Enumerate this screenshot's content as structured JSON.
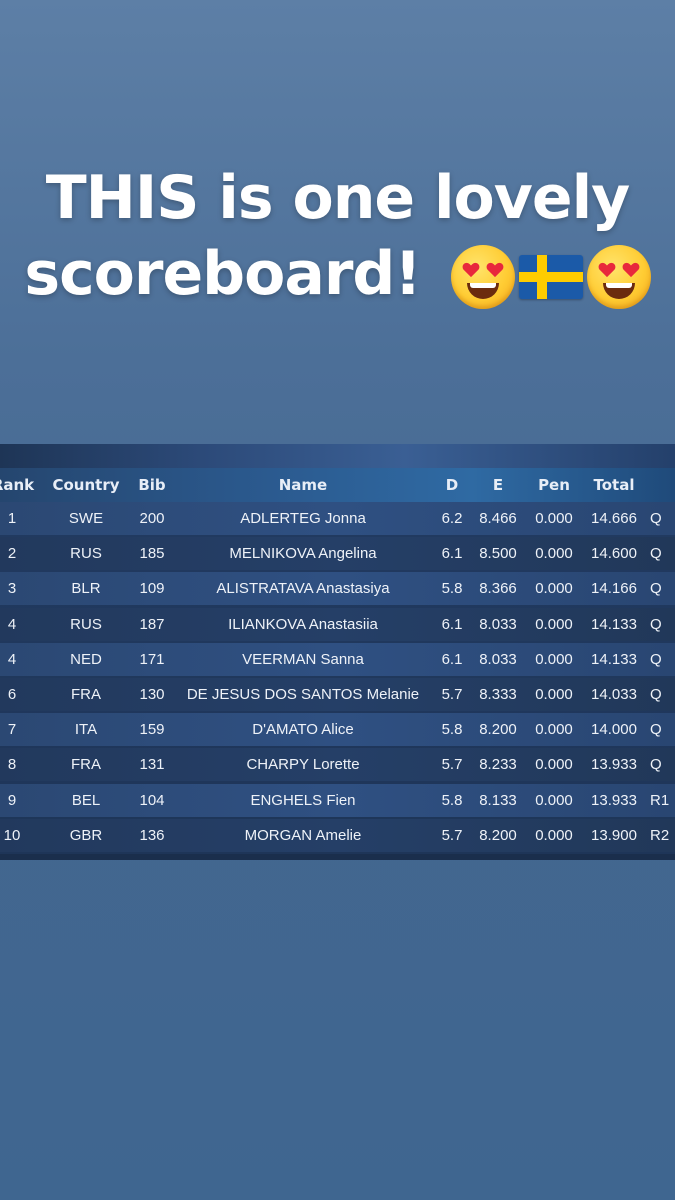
{
  "caption": {
    "line1": "THIS is one lovely",
    "line2": "scoreboard!",
    "emojis": [
      "heart-eyes-emoji",
      "swedish-flag-emoji",
      "heart-eyes-emoji"
    ]
  },
  "scoreboard": {
    "headers": {
      "rank": "Rank",
      "country": "Country",
      "bib": "Bib",
      "name": "Name",
      "d": "D",
      "e": "E",
      "pen": "Pen",
      "total": "Total"
    },
    "rows": [
      {
        "rank": "1",
        "country": "SWE",
        "bib": "200",
        "name": "ADLERTEG Jonna",
        "d": "6.2",
        "e": "8.466",
        "pen": "0.000",
        "total": "14.666",
        "q": "Q"
      },
      {
        "rank": "2",
        "country": "RUS",
        "bib": "185",
        "name": "MELNIKOVA Angelina",
        "d": "6.1",
        "e": "8.500",
        "pen": "0.000",
        "total": "14.600",
        "q": "Q"
      },
      {
        "rank": "3",
        "country": "BLR",
        "bib": "109",
        "name": "ALISTRATAVA Anastasiya",
        "d": "5.8",
        "e": "8.366",
        "pen": "0.000",
        "total": "14.166",
        "q": "Q"
      },
      {
        "rank": "4",
        "country": "RUS",
        "bib": "187",
        "name": "ILIANKOVA Anastasiia",
        "d": "6.1",
        "e": "8.033",
        "pen": "0.000",
        "total": "14.133",
        "q": "Q"
      },
      {
        "rank": "4",
        "country": "NED",
        "bib": "171",
        "name": "VEERMAN Sanna",
        "d": "6.1",
        "e": "8.033",
        "pen": "0.000",
        "total": "14.133",
        "q": "Q"
      },
      {
        "rank": "6",
        "country": "FRA",
        "bib": "130",
        "name": "DE JESUS DOS SANTOS Melanie",
        "d": "5.7",
        "e": "8.333",
        "pen": "0.000",
        "total": "14.033",
        "q": "Q"
      },
      {
        "rank": "7",
        "country": "ITA",
        "bib": "159",
        "name": "D'AMATO Alice",
        "d": "5.8",
        "e": "8.200",
        "pen": "0.000",
        "total": "14.000",
        "q": "Q"
      },
      {
        "rank": "8",
        "country": "FRA",
        "bib": "131",
        "name": "CHARPY Lorette",
        "d": "5.7",
        "e": "8.233",
        "pen": "0.000",
        "total": "13.933",
        "q": "Q"
      },
      {
        "rank": "9",
        "country": "BEL",
        "bib": "104",
        "name": "ENGHELS Fien",
        "d": "5.8",
        "e": "8.133",
        "pen": "0.000",
        "total": "13.933",
        "q": "R1"
      },
      {
        "rank": "10",
        "country": "GBR",
        "bib": "136",
        "name": "MORGAN Amelie",
        "d": "5.7",
        "e": "8.200",
        "pen": "0.000",
        "total": "13.900",
        "q": "R2"
      }
    ]
  }
}
